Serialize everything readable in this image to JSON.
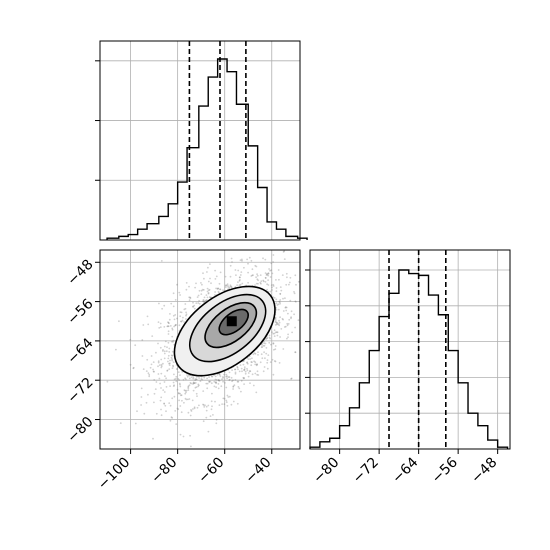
{
  "chart_data": [
    {
      "panel": "top-left",
      "type": "histogram",
      "variable": "x",
      "quantile_lines": [
        -75,
        -62,
        -51
      ],
      "xlim": [
        -113,
        -28
      ],
      "grid": true,
      "bins": [
        {
          "x0": -110,
          "x1": -105,
          "count": 0.01
        },
        {
          "x0": -105,
          "x1": -101,
          "count": 0.02
        },
        {
          "x0": -101,
          "x1": -97,
          "count": 0.03
        },
        {
          "x0": -97,
          "x1": -93,
          "count": 0.06
        },
        {
          "x0": -93,
          "x1": -88,
          "count": 0.09
        },
        {
          "x0": -88,
          "x1": -84,
          "count": 0.13
        },
        {
          "x0": -84,
          "x1": -80,
          "count": 0.2
        },
        {
          "x0": -80,
          "x1": -76,
          "count": 0.32
        },
        {
          "x0": -76,
          "x1": -71,
          "count": 0.51
        },
        {
          "x0": -71,
          "x1": -67,
          "count": 0.74
        },
        {
          "x0": -67,
          "x1": -63,
          "count": 0.9
        },
        {
          "x0": -63,
          "x1": -59,
          "count": 1.0
        },
        {
          "x0": -59,
          "x1": -55,
          "count": 0.93
        },
        {
          "x0": -55,
          "x1": -50,
          "count": 0.75
        },
        {
          "x0": -50,
          "x1": -46,
          "count": 0.52
        },
        {
          "x0": -46,
          "x1": -42,
          "count": 0.29
        },
        {
          "x0": -42,
          "x1": -38,
          "count": 0.1
        },
        {
          "x0": -38,
          "x1": -34,
          "count": 0.06
        },
        {
          "x0": -34,
          "x1": -29,
          "count": 0.02
        },
        {
          "x0": -29,
          "x1": -25,
          "count": 0.01
        }
      ]
    },
    {
      "panel": "bottom-left",
      "type": "scatter",
      "description_x": "x",
      "description_y": "y",
      "xlim": [
        -113,
        -28
      ],
      "ylim": [
        -86,
        -45.5
      ],
      "x_ticks": [
        "−100",
        "−80",
        "−60",
        "−40"
      ],
      "x_tick_values": [
        -100,
        -80,
        -60,
        -40
      ],
      "y_ticks": [
        "−48",
        "−56",
        "−64",
        "−72",
        "−80"
      ],
      "y_tick_values": [
        -48,
        -56,
        -64,
        -72,
        -80
      ],
      "grid": true,
      "center": [
        -61,
        -63
      ],
      "contour_levels": 4,
      "peak": [
        -57,
        -60
      ]
    },
    {
      "panel": "bottom-right",
      "type": "histogram",
      "variable": "y",
      "quantile_lines": [
        -70,
        -64,
        -58.5
      ],
      "xlim": [
        -86,
        -45.5
      ],
      "x_ticks": [
        "−80",
        "−72",
        "−64",
        "−56",
        "−48"
      ],
      "x_tick_values": [
        -80,
        -72,
        -64,
        -56,
        -48
      ],
      "grid": true,
      "bins": [
        {
          "x0": -86,
          "x1": -84,
          "count": 0.01
        },
        {
          "x0": -84,
          "x1": -82,
          "count": 0.04
        },
        {
          "x0": -82,
          "x1": -80,
          "count": 0.06
        },
        {
          "x0": -80,
          "x1": -78,
          "count": 0.13
        },
        {
          "x0": -78,
          "x1": -76,
          "count": 0.23
        },
        {
          "x0": -76,
          "x1": -74,
          "count": 0.37
        },
        {
          "x0": -74,
          "x1": -72,
          "count": 0.55
        },
        {
          "x0": -72,
          "x1": -70,
          "count": 0.74
        },
        {
          "x0": -70,
          "x1": -68,
          "count": 0.87
        },
        {
          "x0": -68,
          "x1": -66,
          "count": 1.0
        },
        {
          "x0": -66,
          "x1": -64,
          "count": 0.98
        },
        {
          "x0": -64,
          "x1": -62,
          "count": 0.97
        },
        {
          "x0": -62,
          "x1": -60,
          "count": 0.86
        },
        {
          "x0": -60,
          "x1": -58,
          "count": 0.75
        },
        {
          "x0": -58,
          "x1": -56,
          "count": 0.55
        },
        {
          "x0": -56,
          "x1": -54,
          "count": 0.37
        },
        {
          "x0": -54,
          "x1": -52,
          "count": 0.2
        },
        {
          "x0": -52,
          "x1": -50,
          "count": 0.13
        },
        {
          "x0": -50,
          "x1": -48,
          "count": 0.05
        },
        {
          "x0": -48,
          "x1": -46,
          "count": 0.01
        }
      ]
    }
  ],
  "colors": {
    "line": "#000000",
    "grid": "#b0b0b0",
    "scatter": "#7a7a7a",
    "background": "#ffffff"
  }
}
